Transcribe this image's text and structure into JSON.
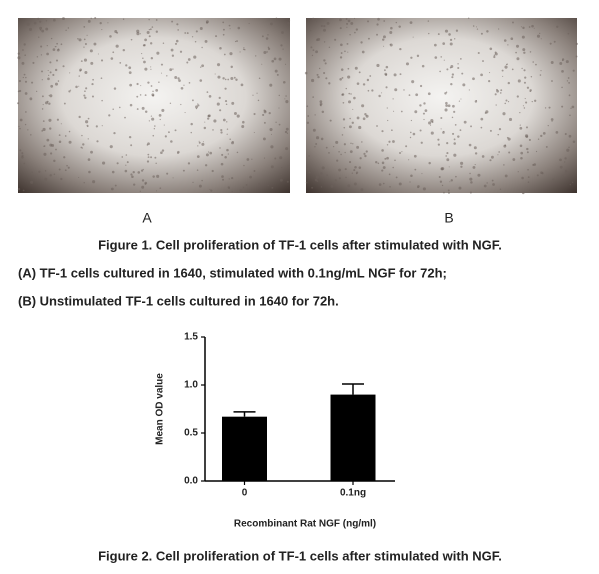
{
  "figure1": {
    "panel_a_label": "A",
    "panel_b_label": "B",
    "caption": "Figure 1. Cell proliferation of TF-1 cells after stimulated with NGF.",
    "legend_a": "(A) TF-1 cells cultured in 1640, stimulated with 0.1ng/mL NGF for 72h;",
    "legend_b": "(B) Unstimulated TF-1 cells cultured in 1640 for 72h."
  },
  "chart_data": {
    "type": "bar",
    "categories": [
      "0",
      "0.1ng"
    ],
    "values": [
      0.67,
      0.9
    ],
    "errors": [
      0.05,
      0.11
    ],
    "color": "#000000",
    "ylim": [
      0,
      1.5
    ],
    "yticks": [
      {
        "value": 0,
        "label": "0.0"
      },
      0.5,
      {
        "value": 1,
        "label": "1.0"
      },
      1.5
    ],
    "y_label": "Mean OD value",
    "x_label": "Recombinant Rat NGF (ng/ml)"
  },
  "figure2": {
    "caption": "Figure 2. Cell proliferation of TF-1 cells after stimulated with NGF."
  }
}
